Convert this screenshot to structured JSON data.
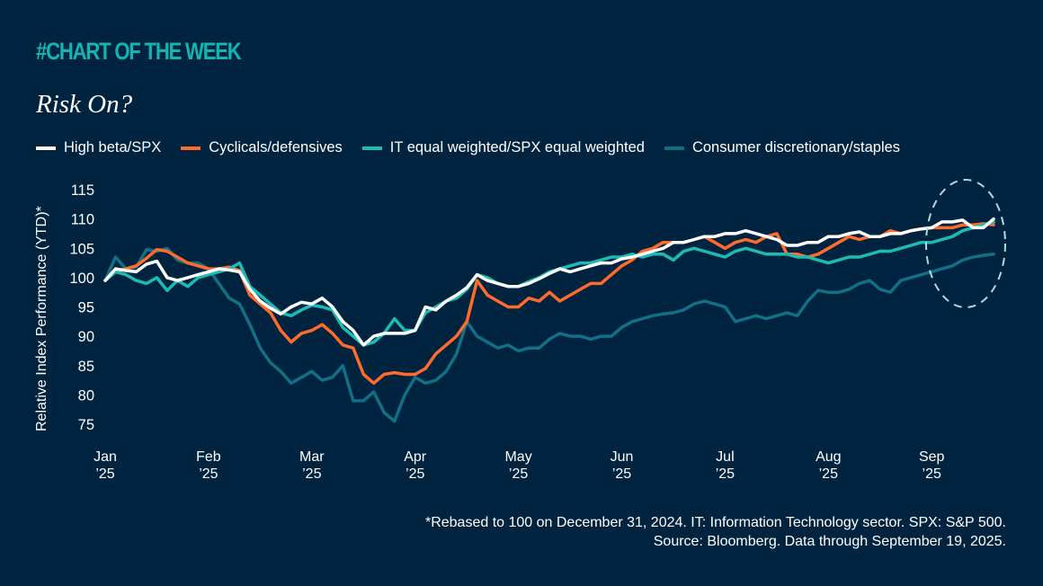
{
  "header": {
    "kicker": "#CHART OF THE WEEK",
    "title": "Risk On?"
  },
  "footnote": {
    "line1": "*Rebased to 100 on December 31, 2024. IT: Information Technology sector. SPX: S&P 500.",
    "line2": "Source: Bloomberg. Data through September 19, 2025."
  },
  "chart_data": {
    "type": "line",
    "title": "Risk On?",
    "xlabel": "",
    "ylabel": "Relative Index Performance (YTD)*",
    "ylim": [
      75,
      115
    ],
    "yticks": [
      115,
      110,
      105,
      100,
      95,
      90,
      85,
      80,
      75
    ],
    "xticks": [
      {
        "label": "Jan",
        "sub": "’25",
        "month": 0
      },
      {
        "label": "Feb",
        "sub": "’25",
        "month": 1
      },
      {
        "label": "Mar",
        "sub": "’25",
        "month": 2
      },
      {
        "label": "Apr",
        "sub": "’25",
        "month": 3
      },
      {
        "label": "May",
        "sub": "’25",
        "month": 4
      },
      {
        "label": "Jun",
        "sub": "’25",
        "month": 5
      },
      {
        "label": "Jul",
        "sub": "’25",
        "month": 6
      },
      {
        "label": "Aug",
        "sub": "’25",
        "month": 7
      },
      {
        "label": "Sep",
        "sub": "’25",
        "month": 8
      }
    ],
    "x_unit": "months since Jan 1, 2025",
    "x": [
      0,
      0.1,
      0.2,
      0.3,
      0.4,
      0.5,
      0.6,
      0.7,
      0.8,
      0.9,
      1.0,
      1.1,
      1.2,
      1.3,
      1.4,
      1.5,
      1.6,
      1.7,
      1.8,
      1.9,
      2.0,
      2.1,
      2.2,
      2.3,
      2.4,
      2.5,
      2.6,
      2.7,
      2.8,
      2.9,
      3.0,
      3.1,
      3.2,
      3.3,
      3.4,
      3.5,
      3.6,
      3.7,
      3.8,
      3.9,
      4.0,
      4.1,
      4.2,
      4.3,
      4.4,
      4.5,
      4.6,
      4.7,
      4.8,
      4.9,
      5.0,
      5.1,
      5.2,
      5.3,
      5.4,
      5.5,
      5.6,
      5.7,
      5.8,
      5.9,
      6.0,
      6.1,
      6.2,
      6.3,
      6.4,
      6.5,
      6.6,
      6.7,
      6.8,
      6.9,
      7.0,
      7.1,
      7.2,
      7.3,
      7.4,
      7.5,
      7.6,
      7.7,
      7.8,
      7.9,
      8.0,
      8.1,
      8.2,
      8.3,
      8.4,
      8.5,
      8.6
    ],
    "series": [
      {
        "name": "High beta/SPX",
        "color": "#ffffff",
        "values": [
          99.5,
          101.5,
          101.2,
          101,
          102.3,
          102.8,
          100,
          99.5,
          100,
          100.5,
          101,
          101.5,
          101.3,
          101,
          98,
          96,
          94.8,
          93.8,
          95,
          95.8,
          95.5,
          96.5,
          95,
          92.5,
          91,
          88.5,
          90,
          90.5,
          90.5,
          90.5,
          91,
          95,
          94.5,
          96,
          97,
          98.3,
          100.5,
          99.5,
          99,
          98.5,
          98.5,
          99,
          99.8,
          100.7,
          101.5,
          101,
          101.5,
          102,
          102.5,
          102.5,
          103.2,
          103.5,
          104,
          104.5,
          105,
          106,
          106,
          106.5,
          107,
          107,
          107.5,
          107.5,
          108,
          107.5,
          107,
          106.5,
          105.5,
          105.5,
          106,
          106,
          107,
          107,
          107.5,
          107.8,
          107,
          107,
          107.5,
          107.5,
          108,
          108.3,
          108.5,
          109.5,
          109.5,
          109.8,
          108.5,
          108.5,
          110
        ]
      },
      {
        "name": "Cyclicals/defensives",
        "color": "#ff6b2c",
        "values": [
          99.5,
          101,
          101.5,
          102,
          103.3,
          104.8,
          104.5,
          103.5,
          102.5,
          102,
          101.5,
          101.5,
          101.8,
          101.2,
          97,
          95.5,
          94,
          91,
          89,
          90.5,
          91,
          92,
          90.5,
          88.5,
          88,
          83.5,
          82,
          83.5,
          83.8,
          83.5,
          83.5,
          84.5,
          87,
          88.5,
          90,
          92.5,
          99.5,
          97,
          96,
          95,
          95,
          96.5,
          96,
          97.5,
          96,
          97,
          98,
          99,
          99,
          100.5,
          102,
          103,
          104.5,
          105,
          106,
          106,
          106,
          106.5,
          107,
          106,
          105,
          106,
          106.5,
          106,
          107,
          107.5,
          104,
          104,
          103.5,
          104,
          105,
          106,
          107,
          106.5,
          107,
          107,
          108,
          107.5,
          108,
          108.3,
          108.5,
          108.5,
          108.5,
          109,
          109,
          109.2,
          109
        ]
      },
      {
        "name": "IT equal weighted/SPX equal weighted",
        "color": "#1cbcb4",
        "values": [
          99.5,
          101,
          100.5,
          99.5,
          99,
          100,
          97.8,
          99.5,
          98.5,
          100,
          100.5,
          101,
          101.5,
          102.5,
          98.5,
          97,
          95.5,
          94,
          93.5,
          94.5,
          95.3,
          95,
          94.5,
          91.5,
          90,
          88.5,
          89,
          90.5,
          93,
          91,
          91,
          94,
          95,
          96,
          96.5,
          98,
          100.5,
          100,
          99,
          98.5,
          98.5,
          99.3,
          100,
          101,
          101.5,
          102,
          102.5,
          102.5,
          103,
          103.5,
          103.5,
          104,
          103.5,
          104,
          104,
          103,
          104.5,
          105,
          104.5,
          104,
          103.5,
          104.5,
          105,
          104.5,
          104,
          104,
          104,
          103.5,
          103.5,
          103,
          102.5,
          103,
          103.5,
          103.5,
          104,
          104.5,
          104.5,
          105,
          105.5,
          106,
          106,
          106.5,
          107,
          108,
          108.5,
          109,
          109.5
        ]
      },
      {
        "name": "Consumer discretionary/staples",
        "color": "#126f86",
        "values": [
          99.5,
          103.5,
          101.5,
          101.8,
          104.8,
          104.5,
          105,
          103,
          102.5,
          102.5,
          101.5,
          99,
          96.5,
          95.5,
          92,
          88,
          85.5,
          84,
          82,
          83,
          84,
          82.5,
          83,
          85,
          79,
          79,
          80.5,
          77,
          75.5,
          80,
          83,
          82,
          82.5,
          84,
          87,
          92.5,
          90,
          89,
          88,
          88.5,
          87.5,
          88,
          88,
          89.5,
          90.5,
          90,
          90,
          89.5,
          90,
          90,
          91.5,
          92.5,
          93,
          93.5,
          93.8,
          94,
          94.5,
          95.5,
          96,
          95.5,
          95,
          92.5,
          93,
          93.5,
          93,
          93.5,
          94,
          93.5,
          96,
          97.8,
          97.5,
          97.5,
          98,
          99,
          99.5,
          98,
          97.5,
          99.5,
          100,
          100.5,
          101,
          101.5,
          102,
          103,
          103.5,
          103.8,
          104
        ]
      }
    ],
    "annotation": "dashed ellipse highlighting September values",
    "legend_position": "top",
    "grid": false
  }
}
